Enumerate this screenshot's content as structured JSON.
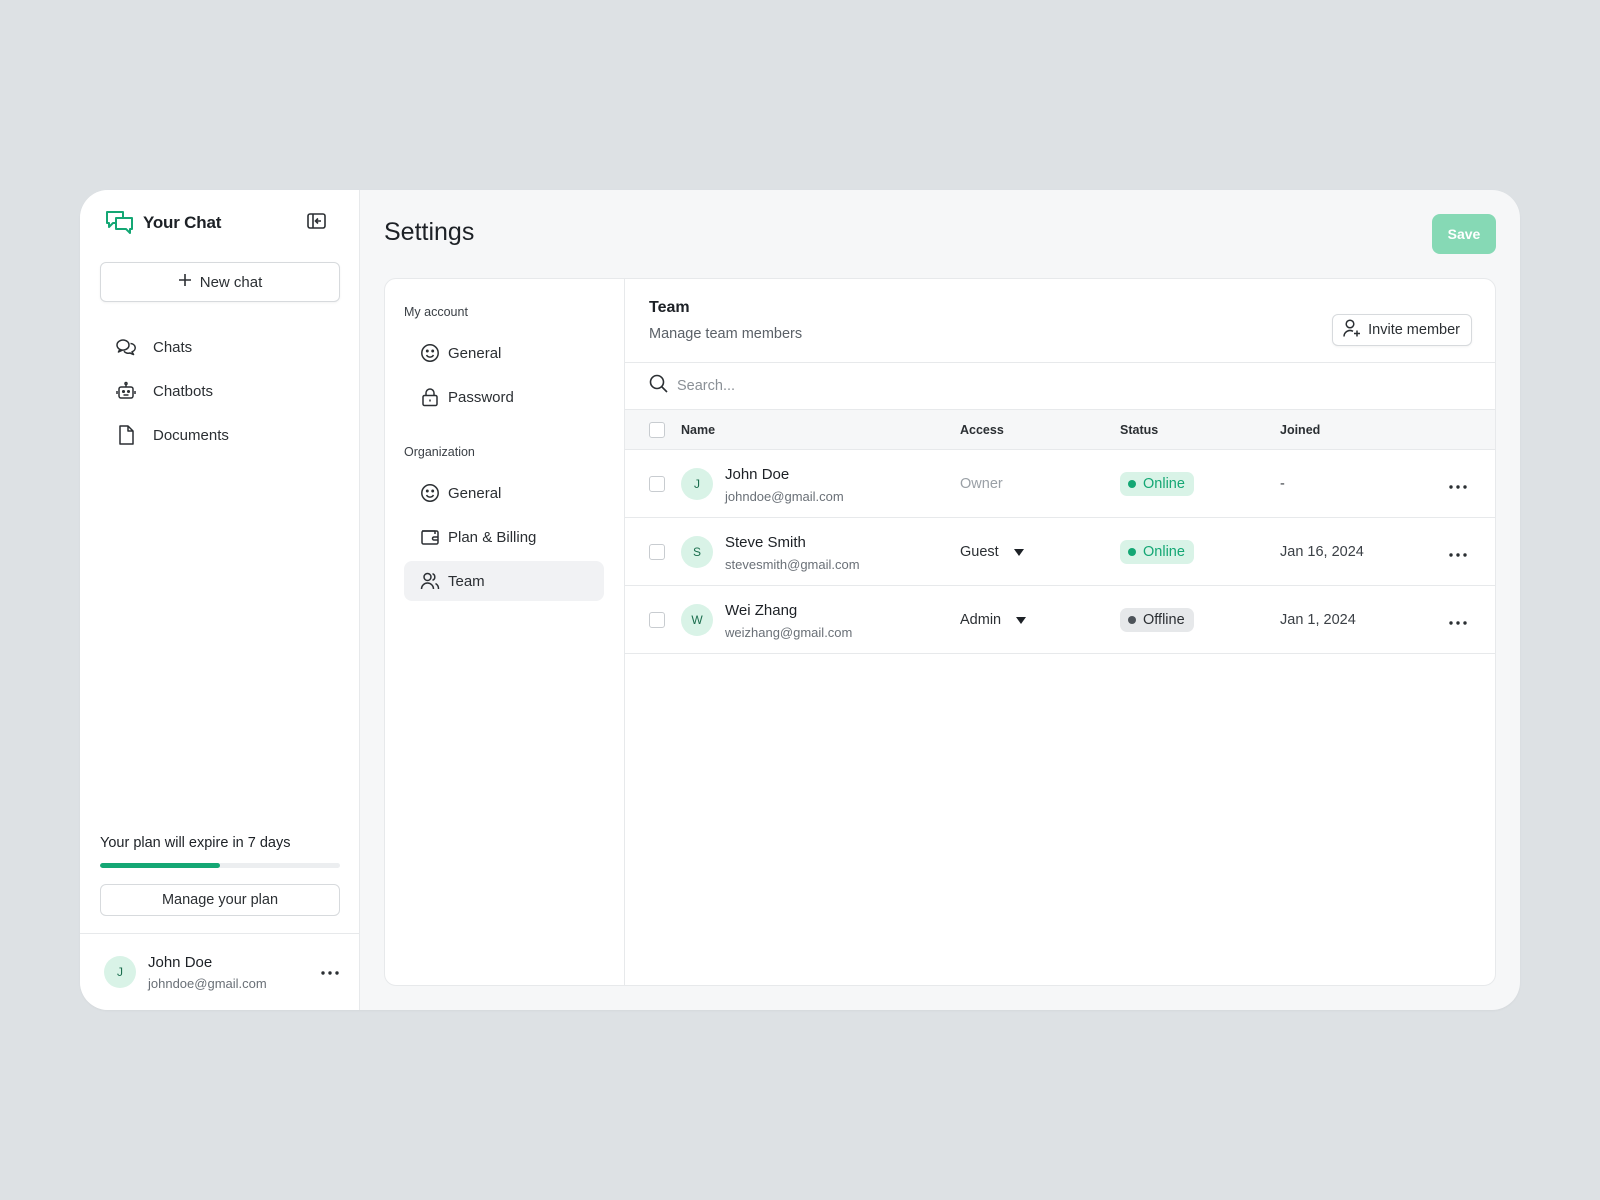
{
  "app": {
    "name": "Your Chat",
    "brand_color": "#14a774"
  },
  "sidebar": {
    "new_chat_label": "New chat",
    "items": [
      {
        "label": "Chats",
        "icon": "chats-icon"
      },
      {
        "label": "Chatbots",
        "icon": "bot-icon"
      },
      {
        "label": "Documents",
        "icon": "document-icon"
      }
    ],
    "plan": {
      "text": "Your plan will expire in 7 days",
      "progress_percent": 50,
      "button_label": "Manage your plan"
    },
    "user": {
      "initial": "J",
      "name": "John Doe",
      "email": "johndoe@gmail.com"
    }
  },
  "header": {
    "title": "Settings",
    "save_label": "Save"
  },
  "settings_nav": {
    "my_account_label": "My account",
    "my_account_items": [
      {
        "label": "General",
        "icon": "smile-icon"
      },
      {
        "label": "Password",
        "icon": "lock-icon"
      }
    ],
    "organization_label": "Organization",
    "organization_items": [
      {
        "label": "General",
        "icon": "smile-icon"
      },
      {
        "label": "Plan & Billing",
        "icon": "wallet-icon"
      },
      {
        "label": "Team",
        "icon": "users-icon",
        "active": true
      }
    ]
  },
  "team": {
    "title": "Team",
    "subtitle": "Manage team members",
    "invite_label": "Invite member",
    "search_placeholder": "Search...",
    "columns": {
      "name": "Name",
      "access": "Access",
      "status": "Status",
      "joined": "Joined"
    },
    "members": [
      {
        "initial": "J",
        "name": "John Doe",
        "email": "johndoe@gmail.com",
        "access": "Owner",
        "status": "Online",
        "joined": "-"
      },
      {
        "initial": "S",
        "name": "Steve Smith",
        "email": "stevesmith@gmail.com",
        "access": "Guest",
        "status": "Online",
        "joined": "Jan 16, 2024"
      },
      {
        "initial": "W",
        "name": "Wei Zhang",
        "email": "weizhang@gmail.com",
        "access": "Admin",
        "status": "Offline",
        "joined": "Jan 1, 2024"
      }
    ]
  }
}
